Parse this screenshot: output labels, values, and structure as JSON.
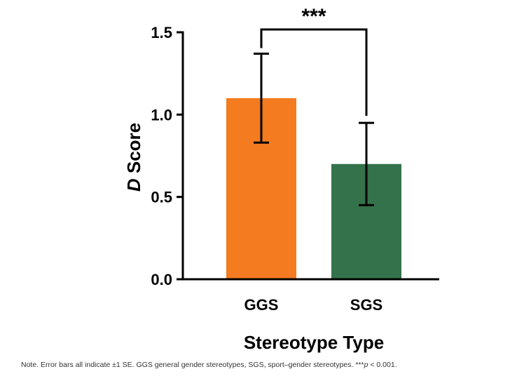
{
  "chart_data": {
    "type": "bar",
    "categories": [
      "GGS",
      "SGS"
    ],
    "values": [
      1.1,
      0.7
    ],
    "errors": [
      0.27,
      0.25
    ],
    "colors": [
      "#F47B20",
      "#33724A"
    ],
    "ylabel_italic": "D",
    "ylabel_rest": " Score",
    "xlabel": "Stereotype Type",
    "ylim": [
      0,
      1.5
    ],
    "yticks": [
      "0.0",
      "0.5",
      "1.0",
      "1.5"
    ],
    "ytick_values": [
      0,
      0.5,
      1.0,
      1.5
    ],
    "significance": {
      "label": "***",
      "between": [
        "GGS",
        "SGS"
      ]
    },
    "grid": false
  },
  "note": {
    "prefix": "Note. Error bars all indicate ±1 SE. GGS general gender stereotypes, SGS, sport–gender stereotypes. ***",
    "p_italic": "p",
    "suffix": " < 0.001."
  }
}
